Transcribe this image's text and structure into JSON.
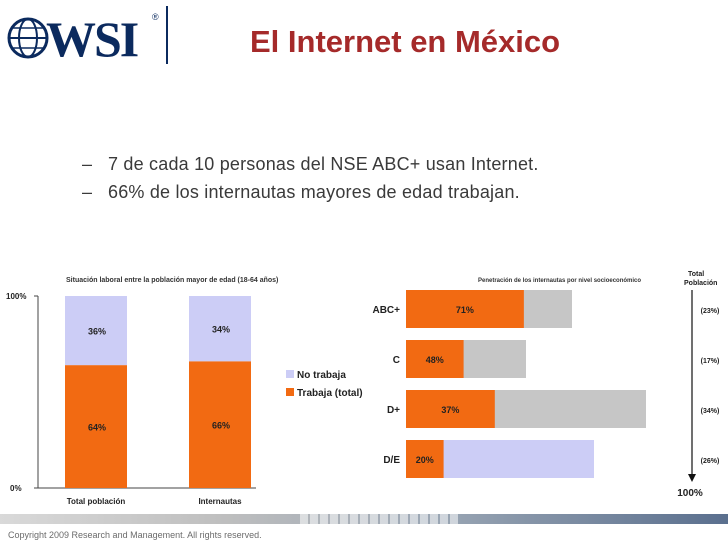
{
  "header": {
    "logo_text": "WSI",
    "logo_mark": "®",
    "title": "El Internet en México"
  },
  "bullets": [
    "7 de cada 10 personas del NSE ABC+ usan Internet.",
    "66% de los internautas mayores de edad trabajan."
  ],
  "bullet_dash": "–",
  "footer": {
    "copyright": "Copyright 2009 Research and Management. All rights reserved."
  },
  "colors": {
    "title": "#a52a2a",
    "orange": "#f26a12",
    "lavender": "#cccdf6",
    "gray": "#c6c6c6",
    "navy": "#0b2a5e"
  },
  "chart_data": [
    {
      "type": "bar",
      "stacked": true,
      "title": "Situación laboral entre la población mayor de edad (18-64 años)",
      "categories": [
        "Total población",
        "Internautas"
      ],
      "series": [
        {
          "name": "Trabaja (total)",
          "values": [
            64,
            66
          ],
          "labels": [
            "64%",
            "66%"
          ],
          "color": "#f26a12"
        },
        {
          "name": "No trabaja",
          "values": [
            36,
            34
          ],
          "labels": [
            "36%",
            "34%"
          ],
          "color": "#cccdf6"
        }
      ],
      "ylim": [
        0,
        100
      ],
      "ytick_labels": [
        "0%",
        "100%"
      ],
      "legend_position": "right",
      "grid": false
    },
    {
      "type": "bar",
      "orientation": "horizontal",
      "title": "Penetración de los internautas por nivel socioeconómico",
      "categories": [
        "ABC+",
        "C",
        "D+",
        "D/E"
      ],
      "penetration": [
        71,
        48,
        37,
        20
      ],
      "penetration_labels": [
        "71%",
        "48%",
        "37%",
        "20%"
      ],
      "population_share": [
        23,
        17,
        34,
        26
      ],
      "population_labels": [
        "(23%)",
        "(17%)",
        "(34%)",
        "(26%)"
      ],
      "remainder_colors": [
        "#c6c6c6",
        "#c6c6c6",
        "#c6c6c6",
        "#cccdf6"
      ],
      "side_header": [
        "Total",
        "Población"
      ],
      "side_total_label": "100%"
    }
  ]
}
